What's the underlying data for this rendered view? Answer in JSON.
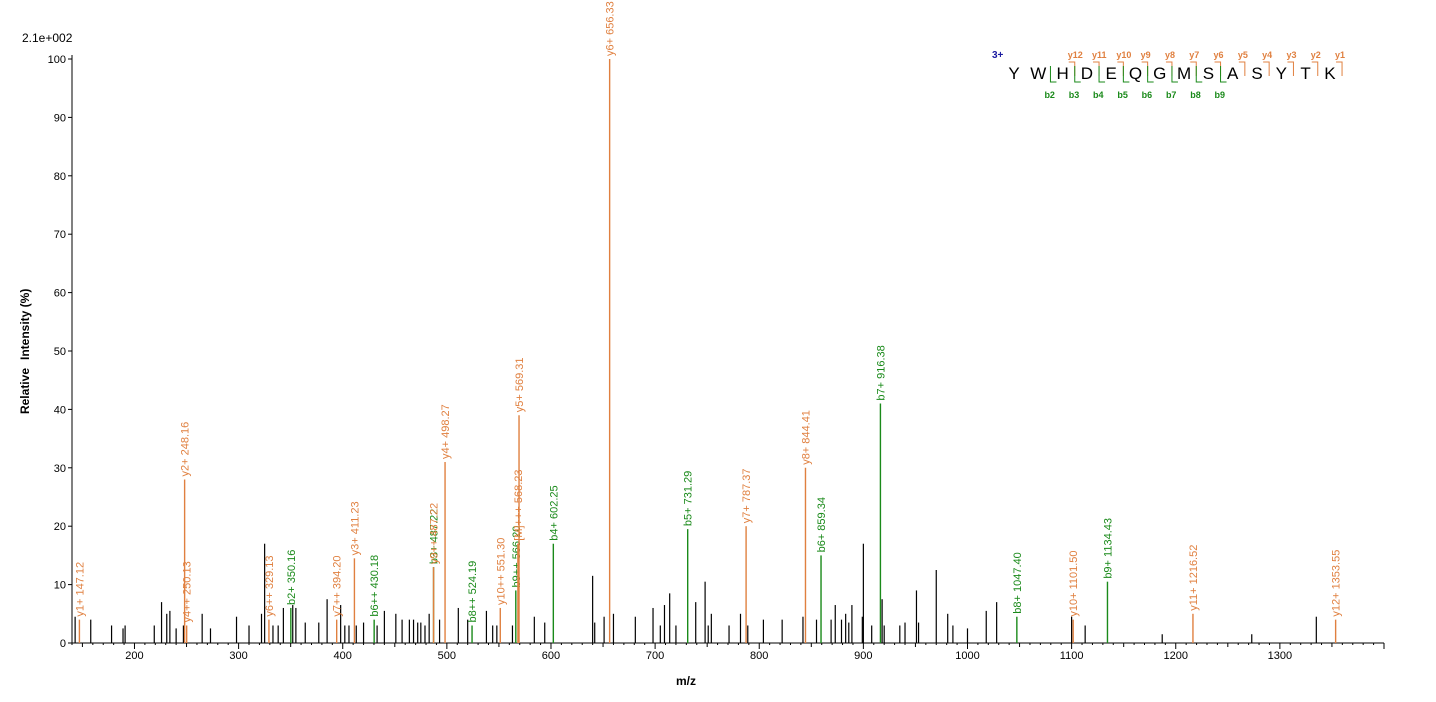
{
  "chart_data": {
    "type": "bar",
    "title": "",
    "scale_label": "2.1e+002",
    "xlabel": "m/z",
    "ylabel_left": "Relative",
    "ylabel_right": "Intensity (%)",
    "xlim": [
      140,
      1400
    ],
    "ylim": [
      0,
      100
    ],
    "x_ticks": [
      "200",
      "300",
      "400",
      "500",
      "600",
      "700",
      "800",
      "900",
      "1000",
      "1100",
      "1200",
      "1300"
    ],
    "y_ticks": [
      "0",
      "10",
      "20",
      "30",
      "40",
      "50",
      "60",
      "70",
      "80",
      "90",
      "100"
    ],
    "colors": {
      "y_ion": "#e08040",
      "b_ion": "#1a8a1a",
      "unassigned": "#000000",
      "axis": "#000000",
      "charge": "#1a1aa0"
    },
    "annotated_peaks": [
      {
        "x": 147.12,
        "y": 4,
        "ion": "y",
        "label": "y1+ 147.12"
      },
      {
        "x": 248.16,
        "y": 28,
        "ion": "y",
        "label": "y2+ 248.16"
      },
      {
        "x": 250.13,
        "y": 3,
        "ion": "y",
        "label": "y4++ 250.13"
      },
      {
        "x": 329.13,
        "y": 4,
        "ion": "y",
        "label": "y6++ 329.13"
      },
      {
        "x": 350.16,
        "y": 6,
        "ion": "b",
        "label": "b2+ 350.16"
      },
      {
        "x": 394.2,
        "y": 4,
        "ion": "y",
        "label": "y7++ 394.20"
      },
      {
        "x": 411.23,
        "y": 14.5,
        "ion": "y",
        "label": "y3+ 411.23"
      },
      {
        "x": 430.18,
        "y": 4,
        "ion": "b",
        "label": "b6++ 430.18"
      },
      {
        "x": 487.22,
        "y": 13,
        "ion": "b",
        "label": "b3+ 487.22"
      },
      {
        "x": 487.22,
        "y": 13,
        "ion": "y",
        "label": "y9++ 487.22"
      },
      {
        "x": 498.27,
        "y": 31,
        "ion": "y",
        "label": "y4+ 498.27"
      },
      {
        "x": 524.19,
        "y": 3,
        "ion": "b",
        "label": "b8++ 524.19"
      },
      {
        "x": 551.3,
        "y": 6,
        "ion": "y",
        "label": "y10++ 551.30"
      },
      {
        "x": 566.2,
        "y": 9,
        "ion": "b",
        "label": "b9++ 566.20"
      },
      {
        "x": 568.23,
        "y": 17,
        "ion": "y",
        "label": "[M]+++ 568.23"
      },
      {
        "x": 569.31,
        "y": 39,
        "ion": "y",
        "label": "y5+ 569.31"
      },
      {
        "x": 602.25,
        "y": 17,
        "ion": "b",
        "label": "b4+ 602.25"
      },
      {
        "x": 656.33,
        "y": 100,
        "ion": "y",
        "label": "y6+ 656.33"
      },
      {
        "x": 731.29,
        "y": 19.5,
        "ion": "b",
        "label": "b5+ 731.29"
      },
      {
        "x": 787.37,
        "y": 20,
        "ion": "y",
        "label": "y7+ 787.37"
      },
      {
        "x": 844.41,
        "y": 30,
        "ion": "y",
        "label": "y8+ 844.41"
      },
      {
        "x": 859.34,
        "y": 15,
        "ion": "b",
        "label": "b6+ 859.34"
      },
      {
        "x": 916.38,
        "y": 41,
        "ion": "b",
        "label": "b7+ 916.38"
      },
      {
        "x": 1047.4,
        "y": 4.5,
        "ion": "b",
        "label": "b8+ 1047.40"
      },
      {
        "x": 1101.5,
        "y": 4,
        "ion": "y",
        "label": "y10+ 1101.50"
      },
      {
        "x": 1134.43,
        "y": 10.5,
        "ion": "b",
        "label": "b9+ 1134.43"
      },
      {
        "x": 1216.52,
        "y": 5,
        "ion": "y",
        "label": "y11+ 1216.52"
      },
      {
        "x": 1353.55,
        "y": 4,
        "ion": "y",
        "label": "y12+ 1353.55"
      }
    ],
    "unassigned_peaks": [
      {
        "x": 143,
        "y": 4.5
      },
      {
        "x": 158,
        "y": 4
      },
      {
        "x": 178,
        "y": 3
      },
      {
        "x": 189,
        "y": 2.5
      },
      {
        "x": 191,
        "y": 3
      },
      {
        "x": 219,
        "y": 3
      },
      {
        "x": 226,
        "y": 7
      },
      {
        "x": 231,
        "y": 5
      },
      {
        "x": 234,
        "y": 5.5
      },
      {
        "x": 240,
        "y": 2.5
      },
      {
        "x": 247,
        "y": 3
      },
      {
        "x": 265,
        "y": 5
      },
      {
        "x": 273,
        "y": 2.5
      },
      {
        "x": 298,
        "y": 4.5
      },
      {
        "x": 310,
        "y": 3
      },
      {
        "x": 322,
        "y": 5
      },
      {
        "x": 325,
        "y": 17
      },
      {
        "x": 333,
        "y": 3
      },
      {
        "x": 338,
        "y": 3
      },
      {
        "x": 343,
        "y": 6
      },
      {
        "x": 352,
        "y": 6.5
      },
      {
        "x": 355,
        "y": 6
      },
      {
        "x": 364,
        "y": 3.5
      },
      {
        "x": 377,
        "y": 3.5
      },
      {
        "x": 385,
        "y": 7.5
      },
      {
        "x": 398,
        "y": 6.5
      },
      {
        "x": 402,
        "y": 3
      },
      {
        "x": 406,
        "y": 3
      },
      {
        "x": 413,
        "y": 3
      },
      {
        "x": 420,
        "y": 3.5
      },
      {
        "x": 433,
        "y": 3
      },
      {
        "x": 440,
        "y": 5.5
      },
      {
        "x": 451,
        "y": 5
      },
      {
        "x": 457,
        "y": 4
      },
      {
        "x": 464,
        "y": 4
      },
      {
        "x": 468,
        "y": 4
      },
      {
        "x": 472,
        "y": 3.5
      },
      {
        "x": 475,
        "y": 3.5
      },
      {
        "x": 479,
        "y": 3
      },
      {
        "x": 483,
        "y": 5
      },
      {
        "x": 493,
        "y": 4
      },
      {
        "x": 511,
        "y": 6
      },
      {
        "x": 520,
        "y": 4
      },
      {
        "x": 538,
        "y": 5.5
      },
      {
        "x": 544,
        "y": 3
      },
      {
        "x": 548,
        "y": 3
      },
      {
        "x": 563,
        "y": 3
      },
      {
        "x": 584,
        "y": 4.5
      },
      {
        "x": 594,
        "y": 3.5
      },
      {
        "x": 640,
        "y": 11.5
      },
      {
        "x": 642,
        "y": 3.5
      },
      {
        "x": 651,
        "y": 4.5
      },
      {
        "x": 660,
        "y": 5
      },
      {
        "x": 681,
        "y": 4.5
      },
      {
        "x": 698,
        "y": 6
      },
      {
        "x": 705,
        "y": 3
      },
      {
        "x": 709,
        "y": 6.5
      },
      {
        "x": 714,
        "y": 8.5
      },
      {
        "x": 720,
        "y": 3
      },
      {
        "x": 739,
        "y": 7
      },
      {
        "x": 748,
        "y": 10.5
      },
      {
        "x": 751,
        "y": 3
      },
      {
        "x": 754,
        "y": 5
      },
      {
        "x": 771,
        "y": 3
      },
      {
        "x": 782,
        "y": 5
      },
      {
        "x": 789,
        "y": 3
      },
      {
        "x": 804,
        "y": 4
      },
      {
        "x": 822,
        "y": 4
      },
      {
        "x": 842,
        "y": 4.5
      },
      {
        "x": 855,
        "y": 4
      },
      {
        "x": 869,
        "y": 4
      },
      {
        "x": 873,
        "y": 6.5
      },
      {
        "x": 879,
        "y": 4
      },
      {
        "x": 883,
        "y": 5
      },
      {
        "x": 886,
        "y": 3.5
      },
      {
        "x": 889,
        "y": 6.5
      },
      {
        "x": 899,
        "y": 4.5
      },
      {
        "x": 900,
        "y": 17
      },
      {
        "x": 908,
        "y": 3
      },
      {
        "x": 918,
        "y": 7.5
      },
      {
        "x": 920,
        "y": 3
      },
      {
        "x": 935,
        "y": 3
      },
      {
        "x": 940,
        "y": 3.5
      },
      {
        "x": 951,
        "y": 9
      },
      {
        "x": 953,
        "y": 3.5
      },
      {
        "x": 970,
        "y": 12.5
      },
      {
        "x": 981,
        "y": 5
      },
      {
        "x": 986,
        "y": 3
      },
      {
        "x": 1000,
        "y": 2.5
      },
      {
        "x": 1018,
        "y": 5.5
      },
      {
        "x": 1028,
        "y": 7
      },
      {
        "x": 1100,
        "y": 4.5
      },
      {
        "x": 1113,
        "y": 3
      },
      {
        "x": 1187,
        "y": 1.5
      },
      {
        "x": 1273,
        "y": 1.5
      },
      {
        "x": 1335,
        "y": 4.5
      }
    ],
    "sequence": {
      "charge": "3+",
      "residues": [
        "Y",
        "W",
        "H",
        "D",
        "E",
        "Q",
        "G",
        "M",
        "S",
        "A",
        "S",
        "Y",
        "T",
        "K"
      ],
      "y_labels": [
        "y12",
        "y11",
        "y10",
        "y9",
        "y8",
        "y7",
        "y6",
        "y5",
        "y4",
        "y3",
        "y2",
        "y1"
      ],
      "b_labels": [
        "b2",
        "b3",
        "b4",
        "b5",
        "b6",
        "b7",
        "b8",
        "b9"
      ]
    }
  }
}
